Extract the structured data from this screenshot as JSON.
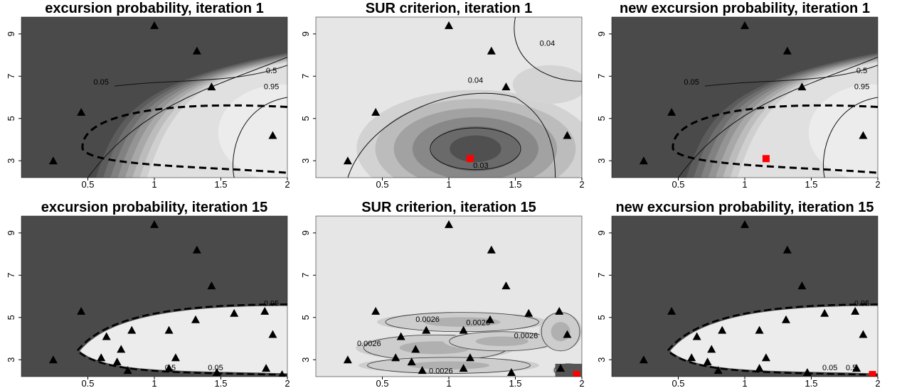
{
  "chart_data": [
    {
      "type": "heatmap",
      "title": "excursion probability, iteration 1",
      "x_ticks": [
        "0.5",
        "1",
        "1.5",
        "2"
      ],
      "y_ticks": [
        "3",
        "5",
        "7",
        "9"
      ],
      "contour_labels": [
        "0.05",
        "0.5",
        "0.95"
      ],
      "design_points": [
        [
          0.24,
          3.0
        ],
        [
          0.45,
          5.3
        ],
        [
          1.0,
          9.4
        ],
        [
          1.32,
          8.2
        ],
        [
          1.43,
          6.5
        ],
        [
          1.89,
          4.2
        ]
      ],
      "new_point": null
    },
    {
      "type": "heatmap",
      "title": "SUR criterion, iteration 1",
      "x_ticks": [
        "0.5",
        "1",
        "1.5",
        "2"
      ],
      "y_ticks": [
        "3",
        "5",
        "7",
        "9"
      ],
      "contour_labels": [
        "0.04",
        "0.04",
        "0.03"
      ],
      "design_points": [
        [
          0.24,
          3.0
        ],
        [
          0.45,
          5.3
        ],
        [
          1.0,
          9.4
        ],
        [
          1.32,
          8.2
        ],
        [
          1.43,
          6.5
        ],
        [
          1.89,
          4.2
        ]
      ],
      "new_point": [
        1.16,
        3.1
      ]
    },
    {
      "type": "heatmap",
      "title": "new excursion probability, iteration 1",
      "x_ticks": [
        "0.5",
        "1",
        "1.5",
        "2"
      ],
      "y_ticks": [
        "3",
        "5",
        "7",
        "9"
      ],
      "contour_labels": [
        "0.05",
        "0.5",
        "0.95"
      ],
      "design_points": [
        [
          0.24,
          3.0
        ],
        [
          0.45,
          5.3
        ],
        [
          1.0,
          9.4
        ],
        [
          1.32,
          8.2
        ],
        [
          1.43,
          6.5
        ],
        [
          1.89,
          4.2
        ]
      ],
      "new_point": [
        1.16,
        3.1
      ]
    },
    {
      "type": "heatmap",
      "title": "excursion probability, iteration 15",
      "x_ticks": [
        "0.5",
        "1",
        "1.5",
        "2"
      ],
      "y_ticks": [
        "3",
        "5",
        "7",
        "9"
      ],
      "contour_labels": [
        "0.95",
        "0.5",
        "0.05"
      ],
      "design_points": [
        [
          0.24,
          3.0
        ],
        [
          0.45,
          5.3
        ],
        [
          1.0,
          9.4
        ],
        [
          1.32,
          8.2
        ],
        [
          1.43,
          6.5
        ],
        [
          1.89,
          4.2
        ],
        [
          0.6,
          3.1
        ],
        [
          0.64,
          4.1
        ],
        [
          0.72,
          2.9
        ],
        [
          0.75,
          3.5
        ],
        [
          0.8,
          2.5
        ],
        [
          0.83,
          4.4
        ],
        [
          1.11,
          4.4
        ],
        [
          1.16,
          3.1
        ],
        [
          1.11,
          2.6
        ],
        [
          1.31,
          4.9
        ],
        [
          1.47,
          2.4
        ],
        [
          1.6,
          5.2
        ],
        [
          1.83,
          5.3
        ],
        [
          1.84,
          2.6
        ],
        [
          1.96,
          2.3
        ]
      ],
      "new_point": null
    },
    {
      "type": "heatmap",
      "title": "SUR criterion, iteration 15",
      "x_ticks": [
        "0.5",
        "1",
        "1.5",
        "2"
      ],
      "y_ticks": [
        "3",
        "5",
        "7",
        "9"
      ],
      "contour_labels": [
        "0.0026",
        "0.0026",
        "0.0026",
        "0.0026",
        "0.0026"
      ],
      "design_points": [
        [
          0.24,
          3.0
        ],
        [
          0.45,
          5.3
        ],
        [
          1.0,
          9.4
        ],
        [
          1.32,
          8.2
        ],
        [
          1.43,
          6.5
        ],
        [
          1.89,
          4.2
        ],
        [
          0.6,
          3.1
        ],
        [
          0.64,
          4.1
        ],
        [
          0.72,
          2.9
        ],
        [
          0.75,
          3.5
        ],
        [
          0.8,
          2.5
        ],
        [
          0.83,
          4.4
        ],
        [
          1.11,
          4.4
        ],
        [
          1.16,
          3.1
        ],
        [
          1.11,
          2.6
        ],
        [
          1.31,
          4.9
        ],
        [
          1.47,
          2.4
        ],
        [
          1.6,
          5.2
        ],
        [
          1.83,
          5.3
        ],
        [
          1.84,
          2.6
        ]
      ],
      "new_point": [
        1.96,
        2.3
      ]
    },
    {
      "type": "heatmap",
      "title": "new excursion probability, iteration 15",
      "x_ticks": [
        "0.5",
        "1",
        "1.5",
        "2"
      ],
      "y_ticks": [
        "3",
        "5",
        "7",
        "9"
      ],
      "contour_labels": [
        "0.95",
        "0.05",
        "0.5"
      ],
      "design_points": [
        [
          0.24,
          3.0
        ],
        [
          0.45,
          5.3
        ],
        [
          1.0,
          9.4
        ],
        [
          1.32,
          8.2
        ],
        [
          1.43,
          6.5
        ],
        [
          1.89,
          4.2
        ],
        [
          0.6,
          3.1
        ],
        [
          0.64,
          4.1
        ],
        [
          0.72,
          2.9
        ],
        [
          0.75,
          3.5
        ],
        [
          0.8,
          2.5
        ],
        [
          0.83,
          4.4
        ],
        [
          1.11,
          4.4
        ],
        [
          1.16,
          3.1
        ],
        [
          1.11,
          2.6
        ],
        [
          1.31,
          4.9
        ],
        [
          1.47,
          2.4
        ],
        [
          1.6,
          5.2
        ],
        [
          1.83,
          5.3
        ],
        [
          1.84,
          2.6
        ]
      ],
      "new_point": [
        1.96,
        2.3
      ]
    }
  ]
}
